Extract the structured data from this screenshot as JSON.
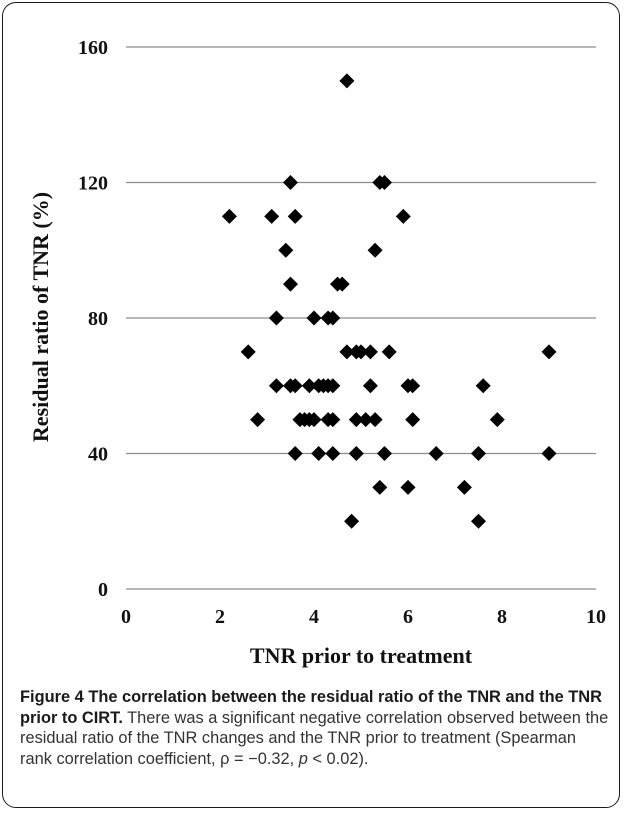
{
  "chart_data": {
    "type": "scatter",
    "xlabel": "TNR prior to treatment",
    "ylabel": "Residual ratio of TNR (%)",
    "xlim": [
      0,
      10
    ],
    "ylim": [
      0,
      160
    ],
    "xticks": [
      "0",
      "2",
      "4",
      "6",
      "8",
      "10"
    ],
    "yticks": [
      "0",
      "40",
      "80",
      "120",
      "160"
    ],
    "grid": "horizontal",
    "marker_color": "#000000",
    "marker": "diamond",
    "points": [
      [
        4.7,
        150
      ],
      [
        3.5,
        120
      ],
      [
        5.4,
        120
      ],
      [
        5.5,
        120
      ],
      [
        2.2,
        110
      ],
      [
        3.1,
        110
      ],
      [
        3.6,
        110
      ],
      [
        5.9,
        110
      ],
      [
        3.4,
        100
      ],
      [
        5.3,
        100
      ],
      [
        3.5,
        90
      ],
      [
        4.5,
        90
      ],
      [
        4.6,
        90
      ],
      [
        3.2,
        80
      ],
      [
        4.0,
        80
      ],
      [
        4.3,
        80
      ],
      [
        4.4,
        80
      ],
      [
        2.6,
        70
      ],
      [
        4.7,
        70
      ],
      [
        4.9,
        70
      ],
      [
        5.0,
        70
      ],
      [
        5.2,
        70
      ],
      [
        5.6,
        70
      ],
      [
        9.0,
        70
      ],
      [
        3.2,
        60
      ],
      [
        3.5,
        60
      ],
      [
        3.6,
        60
      ],
      [
        3.9,
        60
      ],
      [
        4.1,
        60
      ],
      [
        4.2,
        60
      ],
      [
        4.3,
        60
      ],
      [
        4.4,
        60
      ],
      [
        5.2,
        60
      ],
      [
        6.0,
        60
      ],
      [
        6.1,
        60
      ],
      [
        7.6,
        60
      ],
      [
        2.8,
        50
      ],
      [
        3.7,
        50
      ],
      [
        3.8,
        50
      ],
      [
        3.9,
        50
      ],
      [
        4.0,
        50
      ],
      [
        4.3,
        50
      ],
      [
        4.4,
        50
      ],
      [
        4.9,
        50
      ],
      [
        5.1,
        50
      ],
      [
        5.3,
        50
      ],
      [
        6.1,
        50
      ],
      [
        7.9,
        50
      ],
      [
        3.6,
        40
      ],
      [
        4.1,
        40
      ],
      [
        4.4,
        40
      ],
      [
        4.9,
        40
      ],
      [
        5.5,
        40
      ],
      [
        6.6,
        40
      ],
      [
        7.5,
        40
      ],
      [
        9.0,
        40
      ],
      [
        5.4,
        30
      ],
      [
        6.0,
        30
      ],
      [
        7.2,
        30
      ],
      [
        4.8,
        20
      ],
      [
        7.5,
        20
      ]
    ]
  },
  "caption": {
    "label": "Figure 4",
    "title": "The correlation between the residual ratio of the TNR and the TNR prior to CIRT.",
    "body": "There was a significant negative correlation observed between the residual ratio of the TNR changes and the TNR prior to treatment (Spearman rank correlation coefficient, ρ = −0.32,",
    "stat_p": "p",
    "stat_tail": "< 0.02)."
  },
  "colors": {
    "gridline": "#8c8c8c",
    "axis": "#8c8c8c",
    "text": "#111111",
    "caption": "#333333"
  }
}
